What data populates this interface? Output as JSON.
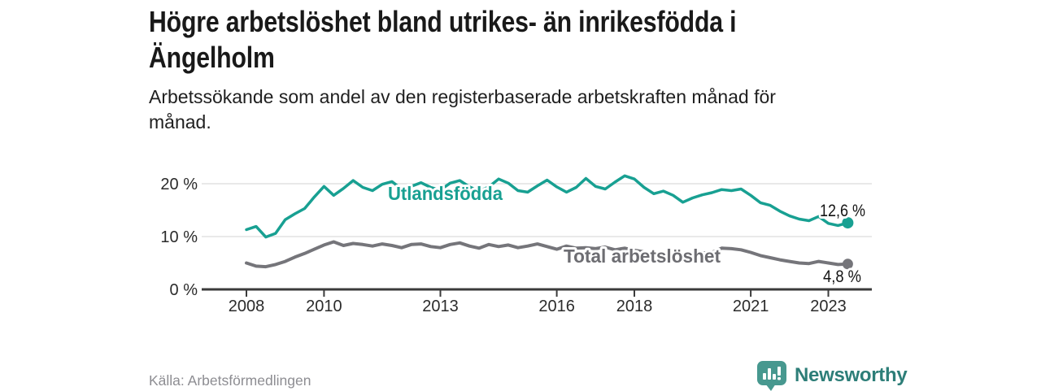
{
  "header": {
    "title_lines": [
      "Högre arbetslöshet bland utrikes- än inrikesfödda i",
      "Ängelholm"
    ],
    "subtitle_lines": [
      "Arbetssökande som andel av den registerbaserade arbetskraften månad för",
      "månad."
    ]
  },
  "chart_data": {
    "type": "line",
    "title": "Arbetssökande som andel av den registerbaserade arbetskraften månad för månad",
    "unit": "%",
    "x_start": 2008.0,
    "x_step_years": 0.25,
    "x_end": 2023.5,
    "xticks": [
      2008,
      2010,
      2013,
      2016,
      2018,
      2021,
      2023
    ],
    "yticks": [
      {
        "value": 0,
        "label": "0 %"
      },
      {
        "value": 10,
        "label": "10 %"
      },
      {
        "value": 20,
        "label": "20 %"
      }
    ],
    "ylim": [
      0,
      23
    ],
    "grid": "horizontal",
    "legend_position": "inline-labels",
    "series": [
      {
        "name": "Utlandsfödda",
        "color": "#18a092",
        "label_color": "#18a092",
        "end_value": 12.6,
        "end_value_label": "12,6 %",
        "values": [
          11.3,
          11.9,
          9.9,
          10.6,
          13.2,
          14.3,
          15.3,
          17.5,
          19.5,
          17.8,
          19.1,
          20.6,
          19.3,
          18.7,
          19.9,
          20.4,
          19.0,
          19.5,
          20.2,
          19.3,
          18.8,
          20.1,
          20.6,
          19.4,
          18.6,
          19.4,
          20.9,
          20.1,
          18.7,
          18.4,
          19.6,
          20.7,
          19.4,
          18.4,
          19.3,
          21.0,
          19.5,
          19.0,
          20.3,
          21.5,
          20.9,
          19.3,
          18.1,
          18.6,
          17.8,
          16.5,
          17.3,
          17.9,
          18.3,
          18.9,
          18.7,
          19.0,
          17.8,
          16.4,
          15.9,
          14.8,
          13.9,
          13.3,
          13.0,
          13.8,
          12.5,
          12.1,
          12.6
        ]
      },
      {
        "name": "Total arbetslöshet",
        "color": "#75757a",
        "label_color": "#6d6d72",
        "end_value": 4.8,
        "end_value_label": "4,8 %",
        "values": [
          5.0,
          4.4,
          4.3,
          4.7,
          5.3,
          6.1,
          6.8,
          7.6,
          8.4,
          9.0,
          8.3,
          8.7,
          8.5,
          8.2,
          8.6,
          8.3,
          7.9,
          8.5,
          8.6,
          8.1,
          7.9,
          8.5,
          8.8,
          8.2,
          7.8,
          8.5,
          8.1,
          8.4,
          7.9,
          8.2,
          8.6,
          8.1,
          7.6,
          8.2,
          7.8,
          7.9,
          7.7,
          8.0,
          7.5,
          7.8,
          7.4,
          7.1,
          6.8,
          7.0,
          6.8,
          6.5,
          6.7,
          6.9,
          7.0,
          7.8,
          7.7,
          7.5,
          7.0,
          6.4,
          6.0,
          5.6,
          5.3,
          5.0,
          4.9,
          5.3,
          5.0,
          4.7,
          4.8
        ]
      }
    ]
  },
  "footer": {
    "source": "Källa: Arbetsförmedlingen",
    "brand_name": "Newsworthy",
    "brand_text_color": "#2d7e78",
    "brand_logo_color": "#47988f"
  }
}
